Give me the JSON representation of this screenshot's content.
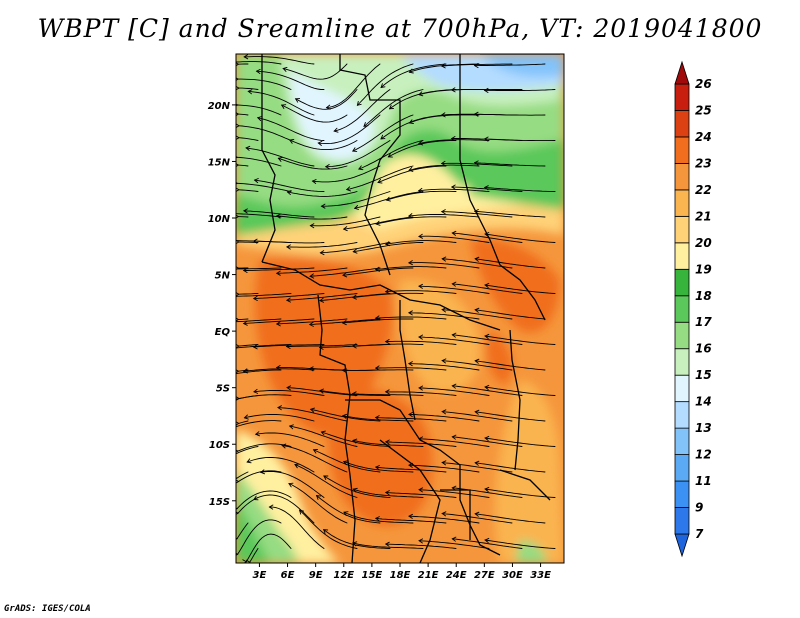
{
  "title": "WBPT [C] and Sreamline at 700hPa, VT: 2019041800",
  "credit": "GrADS: IGES/COLA",
  "map": {
    "lat_labels": [
      {
        "text": "20N",
        "lat": 20
      },
      {
        "text": "15N",
        "lat": 15
      },
      {
        "text": "10N",
        "lat": 10
      },
      {
        "text": "5N",
        "lat": 5
      },
      {
        "text": "EQ",
        "lat": 0
      },
      {
        "text": "5S",
        "lat": -5
      },
      {
        "text": "10S",
        "lat": -10
      },
      {
        "text": "15S",
        "lat": -15
      }
    ],
    "lon_labels": [
      {
        "text": "3E",
        "lon": 3
      },
      {
        "text": "6E",
        "lon": 6
      },
      {
        "text": "9E",
        "lon": 9
      },
      {
        "text": "12E",
        "lon": 12
      },
      {
        "text": "15E",
        "lon": 15
      },
      {
        "text": "18E",
        "lon": 18
      },
      {
        "text": "21E",
        "lon": 21
      },
      {
        "text": "24E",
        "lon": 24
      },
      {
        "text": "27E",
        "lon": 27
      },
      {
        "text": "30E",
        "lon": 30
      },
      {
        "text": "33E",
        "lon": 33
      }
    ],
    "lon_range": [
      0.5,
      35.5
    ],
    "lat_range": [
      -20.5,
      24.5
    ]
  },
  "colorbar": {
    "levels": [
      "7",
      "9",
      "11",
      "12",
      "13",
      "14",
      "15",
      "16",
      "17",
      "18",
      "19",
      "20",
      "21",
      "22",
      "23",
      "24",
      "25",
      "26"
    ],
    "colors": [
      "#1e64dc",
      "#2d78eb",
      "#3c91f5",
      "#5aaaf5",
      "#82c3fa",
      "#b4dcff",
      "#e1f5ff",
      "#c8f0be",
      "#96dc82",
      "#5ac85a",
      "#37b43c",
      "#fff0a0",
      "#ffd278",
      "#fab450",
      "#f5963c",
      "#f06e1e",
      "#dc4114",
      "#c81e0f",
      "#a00a0a"
    ]
  }
}
